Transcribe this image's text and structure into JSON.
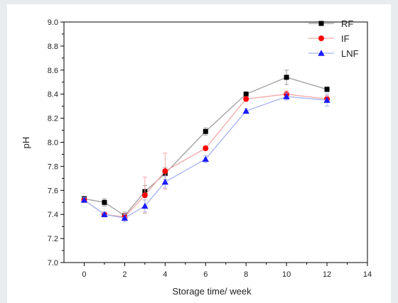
{
  "chart_data": {
    "type": "line",
    "xlabel": "Storage time/ week",
    "ylabel": "pH",
    "xlim": [
      -1,
      14
    ],
    "ylim": [
      7.0,
      9.0
    ],
    "xticks": [
      0,
      2,
      4,
      6,
      8,
      10,
      12,
      14
    ],
    "yticks": [
      7.0,
      7.2,
      7.4,
      7.6,
      7.8,
      8.0,
      8.2,
      8.4,
      8.6,
      8.8,
      9.0
    ],
    "legend_position": "top-right",
    "grid": false,
    "series": [
      {
        "name": "RF",
        "marker": "square",
        "color": "#000000",
        "line_color": "#9e9e9e",
        "x": [
          0,
          1,
          2,
          3,
          4,
          6,
          8,
          10,
          12
        ],
        "y": [
          7.53,
          7.5,
          7.39,
          7.59,
          7.74,
          8.09,
          8.4,
          8.54,
          8.44
        ],
        "error": [
          0.02,
          0.03,
          0.03,
          0.05,
          0.05,
          0.03,
          0.02,
          0.06,
          0.02
        ]
      },
      {
        "name": "IF",
        "marker": "circle",
        "color": "#ff0000",
        "line_color": "#f2a7a7",
        "x": [
          0,
          1,
          2,
          3,
          4,
          6,
          8,
          10,
          12
        ],
        "y": [
          7.52,
          7.4,
          7.38,
          7.56,
          7.76,
          7.95,
          8.36,
          8.4,
          8.36
        ],
        "error": [
          0.02,
          0.02,
          0.03,
          0.15,
          0.15,
          0.02,
          0.02,
          0.03,
          0.03
        ]
      },
      {
        "name": "LNF",
        "marker": "triangle",
        "color": "#1a1aff",
        "line_color": "#a7b4f2",
        "x": [
          0,
          1,
          2,
          3,
          4,
          6,
          8,
          10,
          12
        ],
        "y": [
          7.52,
          7.4,
          7.37,
          7.47,
          7.67,
          7.86,
          8.26,
          8.38,
          8.35
        ],
        "error": [
          0.02,
          0.02,
          0.03,
          0.05,
          0.05,
          0.03,
          0.02,
          0.03,
          0.05
        ]
      }
    ]
  }
}
